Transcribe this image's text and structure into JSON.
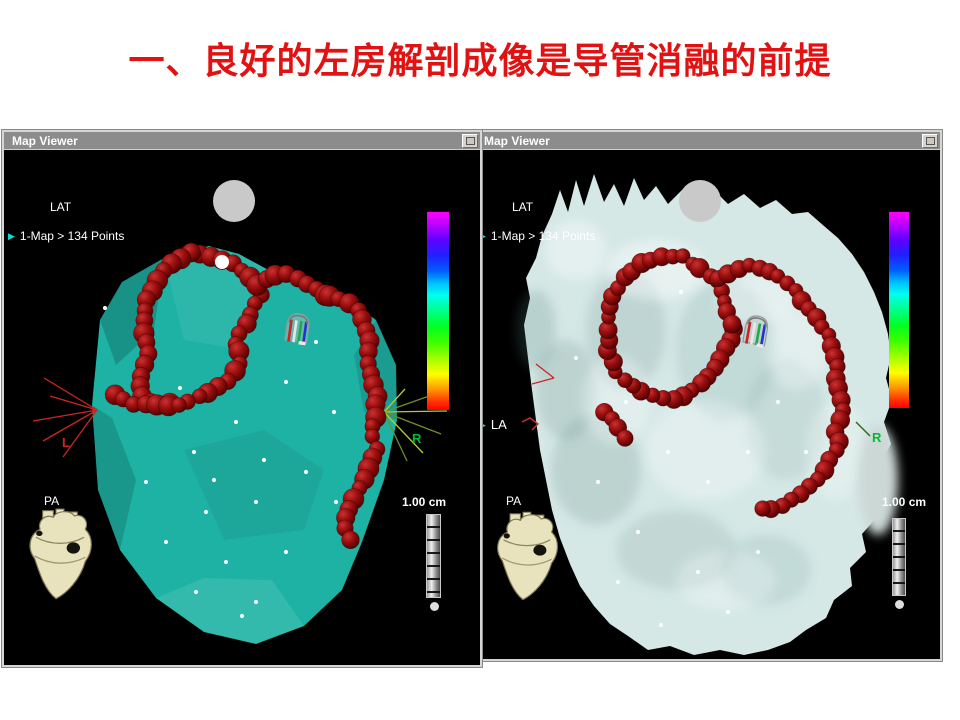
{
  "slide": {
    "title": "一、良好的左房解剖成像是导管消融的前提"
  },
  "left_window": {
    "title": "Map Viewer",
    "view_label": "LAT",
    "map_status": "1-Map > 134 Points",
    "marker_left": "L",
    "marker_right": "R",
    "orientation_label": "PA",
    "scale_label": "1.00 cm"
  },
  "right_window": {
    "title": "Map Viewer",
    "view_label": "LAT",
    "map_status": "1-Map > 134 Points",
    "marker_la": "LA",
    "marker_right": "R",
    "orientation_label": "PA",
    "scale_label": "1.00 cm"
  },
  "colors": {
    "title_red": "#e31212",
    "titlebar_gray": "#8c8c8c",
    "left_model_teal": "#1eb2a4",
    "right_model_pale": "#d5e8e6",
    "lesion_point_red": "#8e0b0b",
    "marker_l_red": "#cc2525",
    "marker_r_green": "#00bb33",
    "status_arrow_cyan": "#00dede"
  }
}
